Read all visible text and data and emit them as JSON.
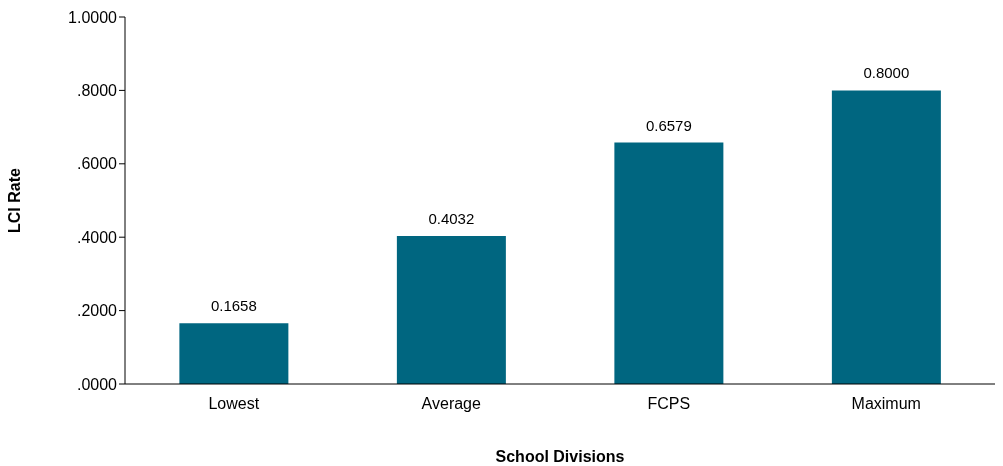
{
  "chart_data": {
    "type": "bar",
    "xlabel": "School Divisions",
    "ylabel": "LCI Rate",
    "categories": [
      "Lowest",
      "Average",
      "FCPS",
      "Maximum"
    ],
    "values": [
      0.1658,
      0.4032,
      0.6579,
      0.8
    ],
    "value_labels": [
      "0.1658",
      "0.4032",
      "0.6579",
      "0.8000"
    ],
    "color": "#006680",
    "ylim": [
      0,
      1
    ],
    "yticks": [
      {
        "value": 0,
        "label": ".0000"
      },
      {
        "value": 0.2,
        "label": ".2000"
      },
      {
        "value": 0.4,
        "label": ".4000"
      },
      {
        "value": 0.6,
        "label": ".6000"
      },
      {
        "value": 0.8,
        "label": ".8000"
      },
      {
        "value": 1,
        "label": "1.0000"
      }
    ],
    "grid": false,
    "legend": false
  }
}
